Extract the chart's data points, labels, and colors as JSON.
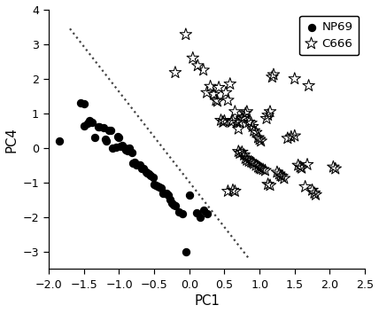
{
  "title": "",
  "xlabel": "PC1",
  "ylabel": "PC4",
  "xlim": [
    -2.0,
    2.5
  ],
  "ylim": [
    -3.5,
    4.0
  ],
  "xticks": [
    -2.0,
    -1.5,
    -1.0,
    -0.5,
    0.0,
    0.5,
    1.0,
    1.5,
    2.0,
    2.5
  ],
  "yticks": [
    -3,
    -2,
    -1,
    0,
    1,
    2,
    3,
    4
  ],
  "background_color": "#ffffff",
  "NP69": [
    [
      -1.85,
      0.2
    ],
    [
      -1.55,
      1.3
    ],
    [
      -1.5,
      1.28
    ],
    [
      -1.5,
      0.65
    ],
    [
      -1.45,
      0.72
    ],
    [
      -1.42,
      0.78
    ],
    [
      -1.38,
      0.75
    ],
    [
      -1.35,
      0.3
    ],
    [
      -1.3,
      0.6
    ],
    [
      -1.28,
      0.62
    ],
    [
      -1.22,
      0.58
    ],
    [
      -1.2,
      0.25
    ],
    [
      -1.18,
      0.2
    ],
    [
      -1.15,
      0.52
    ],
    [
      -1.12,
      0.5
    ],
    [
      -1.1,
      0.0
    ],
    [
      -1.05,
      0.02
    ],
    [
      -1.02,
      0.32
    ],
    [
      -1.0,
      0.3
    ],
    [
      -0.98,
      0.05
    ],
    [
      -0.95,
      0.08
    ],
    [
      -0.92,
      0.0
    ],
    [
      -0.9,
      -0.05
    ],
    [
      -0.88,
      -0.08
    ],
    [
      -0.85,
      0.0
    ],
    [
      -0.82,
      -0.12
    ],
    [
      -0.8,
      -0.45
    ],
    [
      -0.78,
      -0.42
    ],
    [
      -0.75,
      -0.5
    ],
    [
      -0.72,
      -0.5
    ],
    [
      -0.7,
      -0.5
    ],
    [
      -0.68,
      -0.6
    ],
    [
      -0.65,
      -0.6
    ],
    [
      -0.62,
      -0.7
    ],
    [
      -0.6,
      -0.72
    ],
    [
      -0.58,
      -0.75
    ],
    [
      -0.55,
      -0.8
    ],
    [
      -0.52,
      -0.85
    ],
    [
      -0.5,
      -1.05
    ],
    [
      -0.48,
      -1.08
    ],
    [
      -0.45,
      -1.1
    ],
    [
      -0.42,
      -1.12
    ],
    [
      -0.4,
      -1.15
    ],
    [
      -0.38,
      -1.3
    ],
    [
      -0.35,
      -1.3
    ],
    [
      -0.32,
      -1.32
    ],
    [
      -0.3,
      -1.35
    ],
    [
      -0.28,
      -1.5
    ],
    [
      -0.25,
      -1.6
    ],
    [
      -0.22,
      -1.65
    ],
    [
      -0.2,
      -1.68
    ],
    [
      -0.15,
      -1.85
    ],
    [
      -0.1,
      -1.9
    ],
    [
      0.0,
      -1.35
    ],
    [
      -0.05,
      -3.0
    ],
    [
      0.1,
      -1.88
    ],
    [
      0.15,
      -2.0
    ],
    [
      0.2,
      -1.8
    ],
    [
      0.25,
      -1.9
    ]
  ],
  "C666": [
    [
      -0.05,
      3.28
    ],
    [
      0.05,
      2.6
    ],
    [
      0.12,
      2.38
    ],
    [
      -0.2,
      2.18
    ],
    [
      0.2,
      2.25
    ],
    [
      0.25,
      1.6
    ],
    [
      0.3,
      1.78
    ],
    [
      0.35,
      1.55
    ],
    [
      0.38,
      1.38
    ],
    [
      0.4,
      1.35
    ],
    [
      0.42,
      1.75
    ],
    [
      0.45,
      0.8
    ],
    [
      0.48,
      0.75
    ],
    [
      0.5,
      0.78
    ],
    [
      0.52,
      1.6
    ],
    [
      0.55,
      1.38
    ],
    [
      0.58,
      1.85
    ],
    [
      0.6,
      0.75
    ],
    [
      0.62,
      0.8
    ],
    [
      0.65,
      1.05
    ],
    [
      0.68,
      0.75
    ],
    [
      0.7,
      0.55
    ],
    [
      0.72,
      0.75
    ],
    [
      0.75,
      0.85
    ],
    [
      0.78,
      0.9
    ],
    [
      0.8,
      1.0
    ],
    [
      0.82,
      1.05
    ],
    [
      0.85,
      0.75
    ],
    [
      0.88,
      0.72
    ],
    [
      0.9,
      0.62
    ],
    [
      0.92,
      0.5
    ],
    [
      0.95,
      0.45
    ],
    [
      0.98,
      0.3
    ],
    [
      1.0,
      0.25
    ],
    [
      1.02,
      0.2
    ],
    [
      0.7,
      -0.1
    ],
    [
      0.72,
      -0.15
    ],
    [
      0.75,
      -0.12
    ],
    [
      0.78,
      -0.2
    ],
    [
      0.8,
      -0.3
    ],
    [
      0.82,
      -0.35
    ],
    [
      0.85,
      -0.38
    ],
    [
      0.88,
      -0.4
    ],
    [
      0.9,
      -0.42
    ],
    [
      0.92,
      -0.45
    ],
    [
      0.95,
      -0.5
    ],
    [
      0.98,
      -0.55
    ],
    [
      1.0,
      -0.58
    ],
    [
      1.02,
      -0.6
    ],
    [
      1.05,
      -0.62
    ],
    [
      1.08,
      -0.65
    ],
    [
      1.1,
      0.85
    ],
    [
      1.12,
      0.95
    ],
    [
      1.15,
      1.05
    ],
    [
      1.18,
      2.05
    ],
    [
      1.2,
      2.12
    ],
    [
      1.5,
      2.0
    ],
    [
      1.25,
      -0.7
    ],
    [
      1.28,
      -0.75
    ],
    [
      1.3,
      -0.8
    ],
    [
      1.32,
      -0.82
    ],
    [
      1.35,
      -0.88
    ],
    [
      1.4,
      0.28
    ],
    [
      1.45,
      0.32
    ],
    [
      1.5,
      0.35
    ],
    [
      1.55,
      -0.5
    ],
    [
      1.58,
      -0.55
    ],
    [
      1.6,
      -0.58
    ],
    [
      1.65,
      -1.12
    ],
    [
      1.68,
      -0.48
    ],
    [
      1.7,
      1.8
    ],
    [
      1.75,
      -1.22
    ],
    [
      1.78,
      -1.3
    ],
    [
      1.8,
      -1.35
    ],
    [
      2.05,
      -0.55
    ],
    [
      2.08,
      -0.6
    ],
    [
      0.55,
      -1.25
    ],
    [
      0.62,
      -1.22
    ],
    [
      0.65,
      -1.25
    ],
    [
      1.12,
      -1.05
    ],
    [
      1.15,
      -1.08
    ]
  ],
  "dashed_line_x": [
    -1.7,
    0.85
  ],
  "dashed_line_y": [
    3.45,
    -3.2
  ],
  "marker_color": "#000000",
  "legend_loc": "upper right"
}
